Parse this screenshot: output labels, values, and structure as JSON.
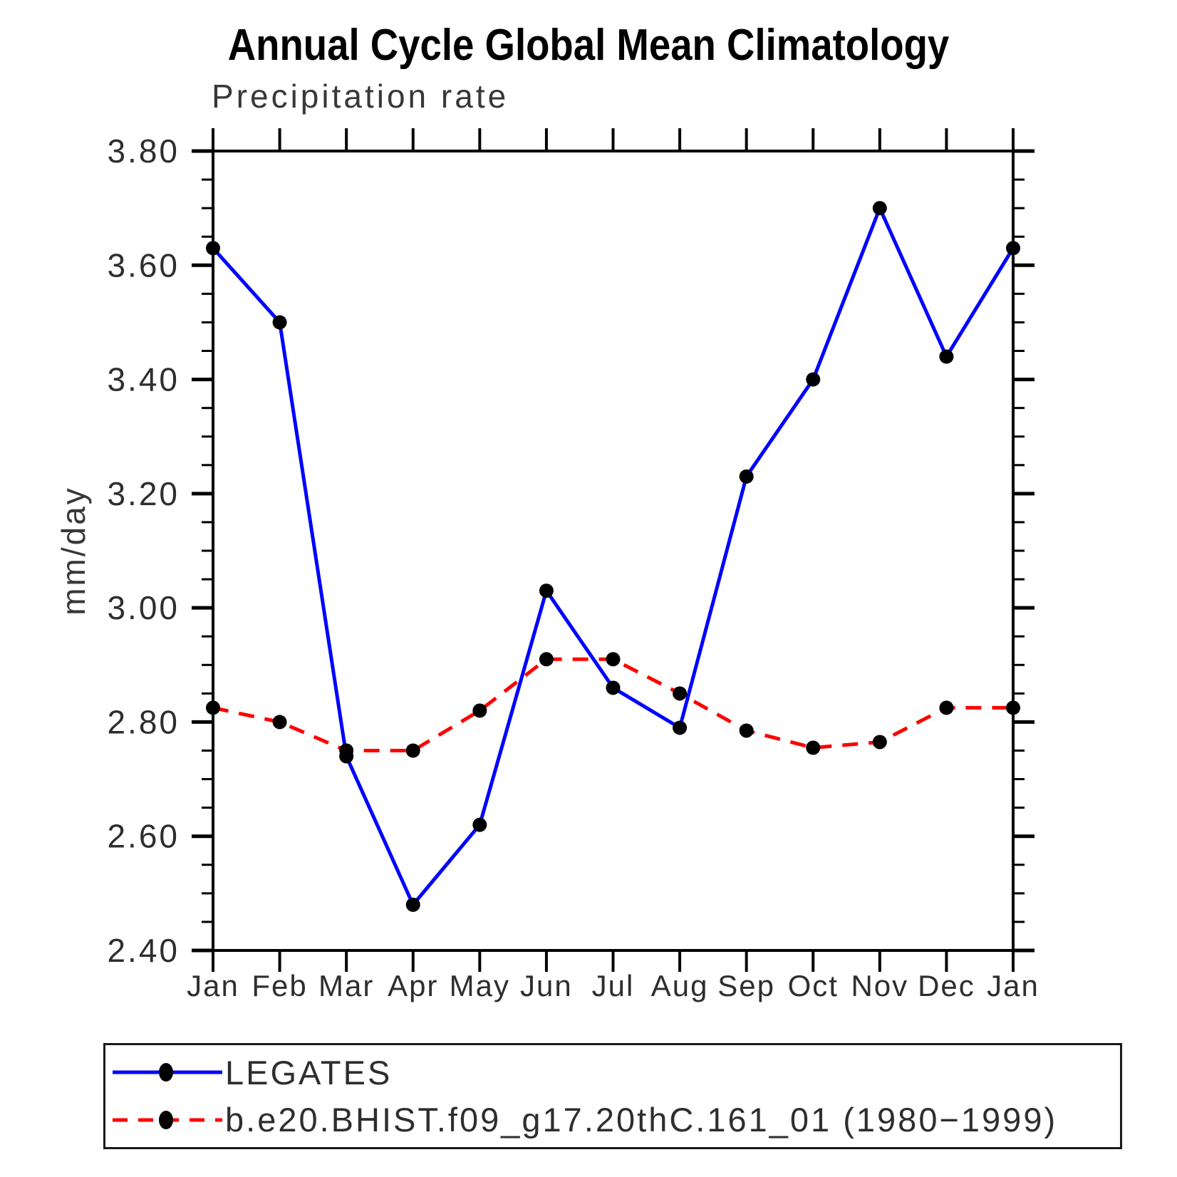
{
  "page": {
    "background": "#ffffff"
  },
  "chart_data": {
    "type": "line",
    "title": "Annual Cycle Global Mean Climatology",
    "subtitle": "Precipitation rate",
    "xlabel": "",
    "ylabel": "mm/day",
    "categories": [
      "Jan",
      "Feb",
      "Mar",
      "Apr",
      "May",
      "Jun",
      "Jul",
      "Aug",
      "Sep",
      "Oct",
      "Nov",
      "Dec",
      "Jan"
    ],
    "ylim": [
      2.4,
      3.8
    ],
    "ytick_major": 0.2,
    "ytick_minor": 0.05,
    "yticks": [
      {
        "value": 2.4,
        "label": "2.40"
      },
      {
        "value": 2.6,
        "label": "2.60"
      },
      {
        "value": 2.8,
        "label": "2.80"
      },
      {
        "value": 3.0,
        "label": "3.00"
      },
      {
        "value": 3.2,
        "label": "3.20"
      },
      {
        "value": 3.4,
        "label": "3.40"
      },
      {
        "value": 3.6,
        "label": "3.60"
      },
      {
        "value": 3.8,
        "label": "3.80"
      }
    ],
    "grid": false,
    "legend_position": "bottom-box",
    "axis_color": "#000000",
    "series": [
      {
        "name": "LEGATES",
        "color": "#0000ff",
        "line_style": "solid",
        "marker": "circle",
        "marker_color": "#000000",
        "values": [
          3.63,
          3.5,
          2.74,
          2.48,
          2.62,
          3.03,
          2.86,
          2.79,
          3.23,
          3.4,
          3.7,
          3.44,
          3.63
        ]
      },
      {
        "name": "b.e20.BHIST.f09_g17.20thC.161_01 (1980−1999)",
        "color": "#ff0000",
        "line_style": "dashed",
        "marker": "circle",
        "marker_color": "#000000",
        "values": [
          2.825,
          2.8,
          2.75,
          2.75,
          2.82,
          2.91,
          2.91,
          2.85,
          2.785,
          2.755,
          2.765,
          2.825,
          2.825
        ]
      }
    ]
  }
}
